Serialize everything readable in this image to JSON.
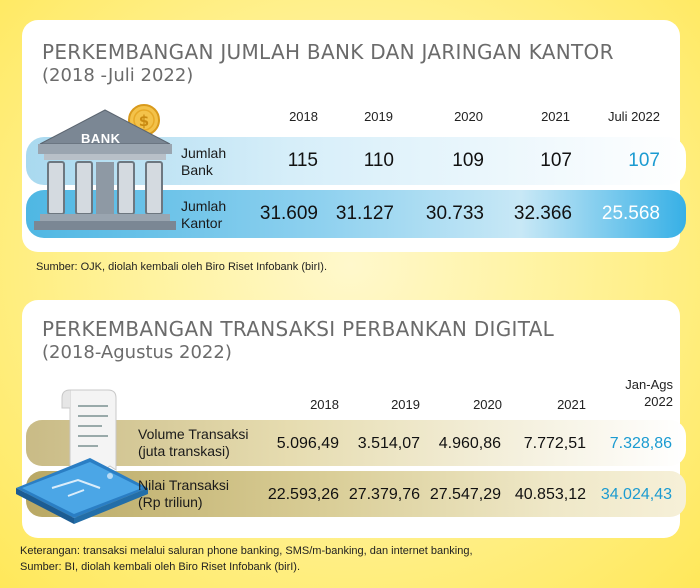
{
  "section1": {
    "title": "PERKEMBANGAN JUMLAH BANK DAN JARINGAN KANTOR",
    "subtitle": "(2018 -Juli 2022)",
    "bank_sign": "BANK",
    "years": [
      "2018",
      "2019",
      "2020",
      "2021",
      "Juli 2022"
    ],
    "rows": [
      {
        "label_line1": "Jumlah",
        "label_line2": "Bank",
        "values": [
          "115",
          "110",
          "109",
          "107",
          "107"
        ]
      },
      {
        "label_line1": "Jumlah",
        "label_line2": "Kantor",
        "values": [
          "31.609",
          "31.127",
          "30.733",
          "32.366",
          "25.568"
        ]
      }
    ],
    "source": "Sumber: OJK, diolah kembali oleh Biro Riset Infobank (birI)."
  },
  "section2": {
    "title": "PERKEMBANGAN TRANSAKSI PERBANKAN DIGITAL",
    "subtitle": "(2018-Agustus 2022)",
    "years": [
      "2018",
      "2019",
      "2020",
      "2021"
    ],
    "last_year_line1": "Jan-Ags",
    "last_year_line2": "2022",
    "rows": [
      {
        "label_line1": "Volume Transaksi",
        "label_line2": "(juta transkasi)",
        "values": [
          "5.096,49",
          "3.514,07",
          "4.960,86",
          "7.772,51",
          "7.328,86"
        ]
      },
      {
        "label_line1": "Nilai Transaksi",
        "label_line2": "(Rp triliun)",
        "values": [
          "22.593,26",
          "27.379,76",
          "27.547,29",
          "40.853,12",
          "34.024,43"
        ]
      }
    ],
    "note1": "Keterangan: transaksi melalui saluran phone banking, SMS/m-banking, dan internet banking,",
    "note2": "Sumber: BI, diolah kembali oleh Biro Riset Infobank (birI)."
  },
  "chart_data": [
    {
      "type": "table",
      "title": "PERKEMBANGAN JUMLAH BANK DAN JARINGAN KANTOR (2018 -Juli 2022)",
      "columns": [
        "2018",
        "2019",
        "2020",
        "2021",
        "Juli 2022"
      ],
      "series": [
        {
          "name": "Jumlah Bank",
          "values": [
            115,
            110,
            109,
            107,
            107
          ]
        },
        {
          "name": "Jumlah Kantor",
          "values": [
            31609,
            31127,
            30733,
            32366,
            25568
          ]
        }
      ]
    },
    {
      "type": "table",
      "title": "PERKEMBANGAN TRANSAKSI PERBANKAN DIGITAL (2018-Agustus 2022)",
      "columns": [
        "2018",
        "2019",
        "2020",
        "2021",
        "Jan-Ags 2022"
      ],
      "series": [
        {
          "name": "Volume Transaksi (juta transkasi)",
          "values": [
            5096.49,
            3514.07,
            4960.86,
            7772.51,
            7328.86
          ]
        },
        {
          "name": "Nilai Transaksi (Rp triliun)",
          "values": [
            22593.26,
            27379.76,
            27547.29,
            40853.12,
            34024.43
          ]
        }
      ]
    }
  ],
  "colors": {
    "highlight_blue": "#1b9bd1",
    "bar_blue": "#4fb7e3",
    "bar_gold": "#b9a864",
    "background_yellow": "#ffe85a"
  }
}
